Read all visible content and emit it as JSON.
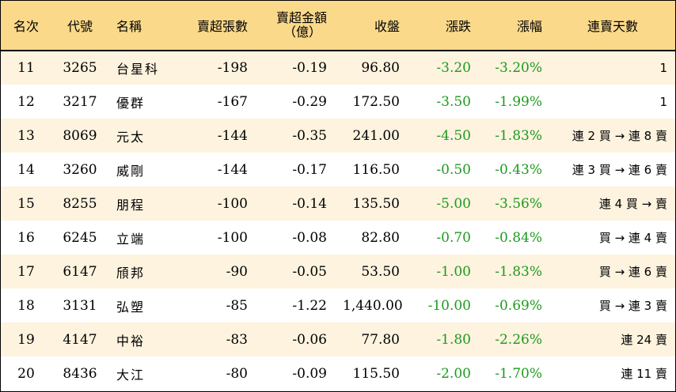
{
  "headers": {
    "rank": "名次",
    "code": "代號",
    "name": "名稱",
    "net_sell_lots": "賣超張數",
    "net_sell_amount": "賣超金額",
    "net_sell_amount_unit": "（億）",
    "close": "收盤",
    "change": "漲跌",
    "pct": "漲幅",
    "streak": "連賣天數"
  },
  "rows": [
    {
      "rank": "11",
      "code": "3265",
      "name": "台星科",
      "lots": "-198",
      "amount": "-0.19",
      "close": "96.80",
      "change": "-3.20",
      "pct": "-3.20%",
      "streak": "1"
    },
    {
      "rank": "12",
      "code": "3217",
      "name": "優群",
      "lots": "-167",
      "amount": "-0.29",
      "close": "172.50",
      "change": "-3.50",
      "pct": "-1.99%",
      "streak": "1"
    },
    {
      "rank": "13",
      "code": "8069",
      "name": "元太",
      "lots": "-144",
      "amount": "-0.35",
      "close": "241.00",
      "change": "-4.50",
      "pct": "-1.83%",
      "streak": "連 2 買 → 連 8 賣"
    },
    {
      "rank": "14",
      "code": "3260",
      "name": "威剛",
      "lots": "-144",
      "amount": "-0.17",
      "close": "116.50",
      "change": "-0.50",
      "pct": "-0.43%",
      "streak": "連 3 買 → 連 6 賣"
    },
    {
      "rank": "15",
      "code": "8255",
      "name": "朋程",
      "lots": "-100",
      "amount": "-0.14",
      "close": "135.50",
      "change": "-5.00",
      "pct": "-3.56%",
      "streak": "連 4 買 → 賣"
    },
    {
      "rank": "16",
      "code": "6245",
      "name": "立端",
      "lots": "-100",
      "amount": "-0.08",
      "close": "82.80",
      "change": "-0.70",
      "pct": "-0.84%",
      "streak": "買 → 連 4 賣"
    },
    {
      "rank": "17",
      "code": "6147",
      "name": "頎邦",
      "lots": "-90",
      "amount": "-0.05",
      "close": "53.50",
      "change": "-1.00",
      "pct": "-1.83%",
      "streak": "買 → 連 6 賣"
    },
    {
      "rank": "18",
      "code": "3131",
      "name": "弘塑",
      "lots": "-85",
      "amount": "-1.22",
      "close": "1,440.00",
      "change": "-10.00",
      "pct": "-0.69%",
      "streak": "買 → 連 3 賣"
    },
    {
      "rank": "19",
      "code": "4147",
      "name": "中裕",
      "lots": "-83",
      "amount": "-0.06",
      "close": "77.80",
      "change": "-1.80",
      "pct": "-2.26%",
      "streak": "連 24 賣"
    },
    {
      "rank": "20",
      "code": "8436",
      "name": "大江",
      "lots": "-80",
      "amount": "-0.09",
      "close": "115.50",
      "change": "-2.00",
      "pct": "-1.70%",
      "streak": "連 11 賣"
    }
  ],
  "colors": {
    "header_bg": "#fbd98a",
    "odd_row_bg": "#fdf3df",
    "even_row_bg": "#ffffff",
    "negative_change": "#1e9a1e"
  }
}
